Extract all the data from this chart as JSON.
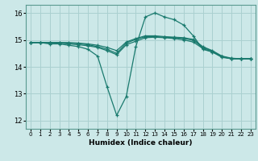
{
  "title": "",
  "xlabel": "Humidex (Indice chaleur)",
  "xlim": [
    -0.5,
    23.5
  ],
  "ylim": [
    11.7,
    16.3
  ],
  "yticks": [
    12,
    13,
    14,
    15,
    16
  ],
  "xticks": [
    0,
    1,
    2,
    3,
    4,
    5,
    6,
    7,
    8,
    9,
    10,
    11,
    12,
    13,
    14,
    15,
    16,
    17,
    18,
    19,
    20,
    21,
    22,
    23
  ],
  "bg_color": "#cce8e8",
  "grid_color": "#aad0d0",
  "line_color": "#1a7a6e",
  "lines": [
    {
      "x": [
        0,
        1,
        2,
        3,
        4,
        5,
        6,
        7,
        8,
        9,
        10,
        11,
        12,
        13,
        14,
        15,
        16,
        17,
        18,
        19,
        20,
        21,
        22,
        23
      ],
      "y": [
        14.9,
        14.9,
        14.85,
        14.85,
        14.8,
        14.75,
        14.65,
        14.4,
        13.25,
        12.2,
        12.9,
        14.75,
        15.85,
        16.0,
        15.85,
        15.75,
        15.55,
        15.15,
        14.65,
        14.55,
        14.35,
        14.3,
        14.3,
        14.3
      ]
    },
    {
      "x": [
        0,
        1,
        2,
        3,
        4,
        5,
        6,
        7,
        8,
        9,
        10,
        11,
        12,
        13,
        14,
        15,
        16,
        17,
        18,
        19,
        20,
        21,
        22,
        23
      ],
      "y": [
        14.9,
        14.9,
        14.9,
        14.88,
        14.85,
        14.82,
        14.78,
        14.72,
        14.6,
        14.45,
        14.82,
        14.95,
        15.08,
        15.1,
        15.08,
        15.05,
        15.0,
        14.92,
        14.68,
        14.55,
        14.38,
        14.3,
        14.3,
        14.3
      ]
    },
    {
      "x": [
        0,
        1,
        2,
        3,
        4,
        5,
        6,
        7,
        8,
        9,
        10,
        11,
        12,
        13,
        14,
        15,
        16,
        17,
        18,
        19,
        20,
        21,
        22,
        23
      ],
      "y": [
        14.9,
        14.9,
        14.9,
        14.9,
        14.88,
        14.86,
        14.82,
        14.75,
        14.65,
        14.5,
        14.88,
        15.02,
        15.12,
        15.12,
        15.1,
        15.08,
        15.05,
        14.98,
        14.72,
        14.58,
        14.38,
        14.3,
        14.3,
        14.3
      ]
    },
    {
      "x": [
        0,
        1,
        2,
        3,
        4,
        5,
        6,
        7,
        8,
        9,
        10,
        11,
        12,
        13,
        14,
        15,
        16,
        17,
        18,
        19,
        20,
        21,
        22,
        23
      ],
      "y": [
        14.9,
        14.9,
        14.9,
        14.9,
        14.9,
        14.88,
        14.85,
        14.8,
        14.72,
        14.6,
        14.92,
        15.05,
        15.15,
        15.15,
        15.12,
        15.1,
        15.08,
        15.02,
        14.75,
        14.6,
        14.4,
        14.32,
        14.3,
        14.3
      ]
    }
  ]
}
